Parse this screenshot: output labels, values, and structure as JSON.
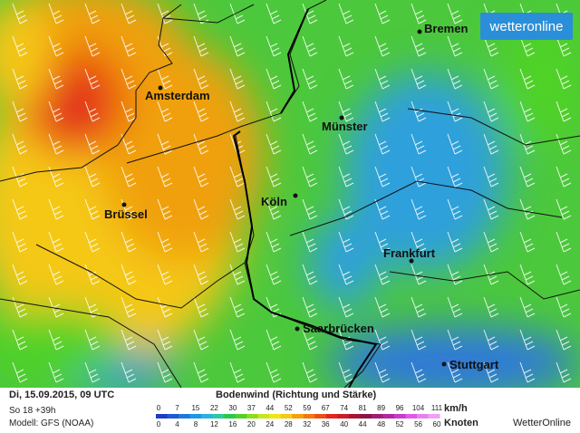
{
  "logo": "wetteronline",
  "cities": [
    {
      "name": "Bremen",
      "dot": [
        463,
        35
      ],
      "label": [
        468,
        32
      ],
      "anchor": "start"
    },
    {
      "name": "Amsterdam",
      "dot": [
        177,
        97
      ],
      "label": [
        160,
        106
      ],
      "anchor": "start"
    },
    {
      "name": "Münster",
      "dot": [
        377,
        130
      ],
      "label": [
        355,
        140
      ],
      "anchor": "start"
    },
    {
      "name": "Brüssel",
      "dot": [
        137,
        226
      ],
      "label": [
        115,
        237
      ],
      "anchor": "start"
    },
    {
      "name": "Köln",
      "dot": [
        326,
        216
      ],
      "label": [
        288,
        223
      ],
      "anchor": "start"
    },
    {
      "name": "Frankfurt",
      "dot": [
        454,
        288
      ],
      "label": [
        423,
        280
      ],
      "anchor": "start"
    },
    {
      "name": "Saarbrücken",
      "dot": [
        328,
        363
      ],
      "label": [
        334,
        363
      ],
      "anchor": "start"
    },
    {
      "name": "Stuttgart",
      "dot": [
        490,
        402
      ],
      "label": [
        496,
        403
      ],
      "anchor": "start"
    }
  ],
  "footer": {
    "date": "Di, 15.09.2015, 09 UTC",
    "run": "So 18 +39h",
    "model": "Modell: GFS (NOAA)",
    "brand": "WetterOnline"
  },
  "legend": {
    "title": "Bodenwind (Richtung und Stärke)",
    "unit_kmh": "km/h",
    "unit_knots": "Knoten",
    "kmh": [
      "0",
      "7",
      "15",
      "22",
      "30",
      "37",
      "44",
      "52",
      "59",
      "67",
      "74",
      "81",
      "89",
      "96",
      "104",
      "111"
    ],
    "knots": [
      "0",
      "4",
      "8",
      "12",
      "16",
      "20",
      "24",
      "28",
      "32",
      "36",
      "40",
      "44",
      "48",
      "52",
      "56",
      "60"
    ],
    "colors": [
      "#1e3cc8",
      "#1e5ad2",
      "#1e78dc",
      "#1e96e6",
      "#28b4dc",
      "#2ec8a0",
      "#28c850",
      "#50d228",
      "#8cdc1e",
      "#c8e61e",
      "#f0e614",
      "#f5c814",
      "#f5a00f",
      "#f0780f",
      "#eb500f",
      "#e1281e",
      "#c81e28",
      "#aa1432",
      "#8c1446",
      "#a01e78",
      "#b428a0",
      "#c83cc8",
      "#dc5ae6",
      "#e682f0",
      "#f0a0f5"
    ]
  }
}
